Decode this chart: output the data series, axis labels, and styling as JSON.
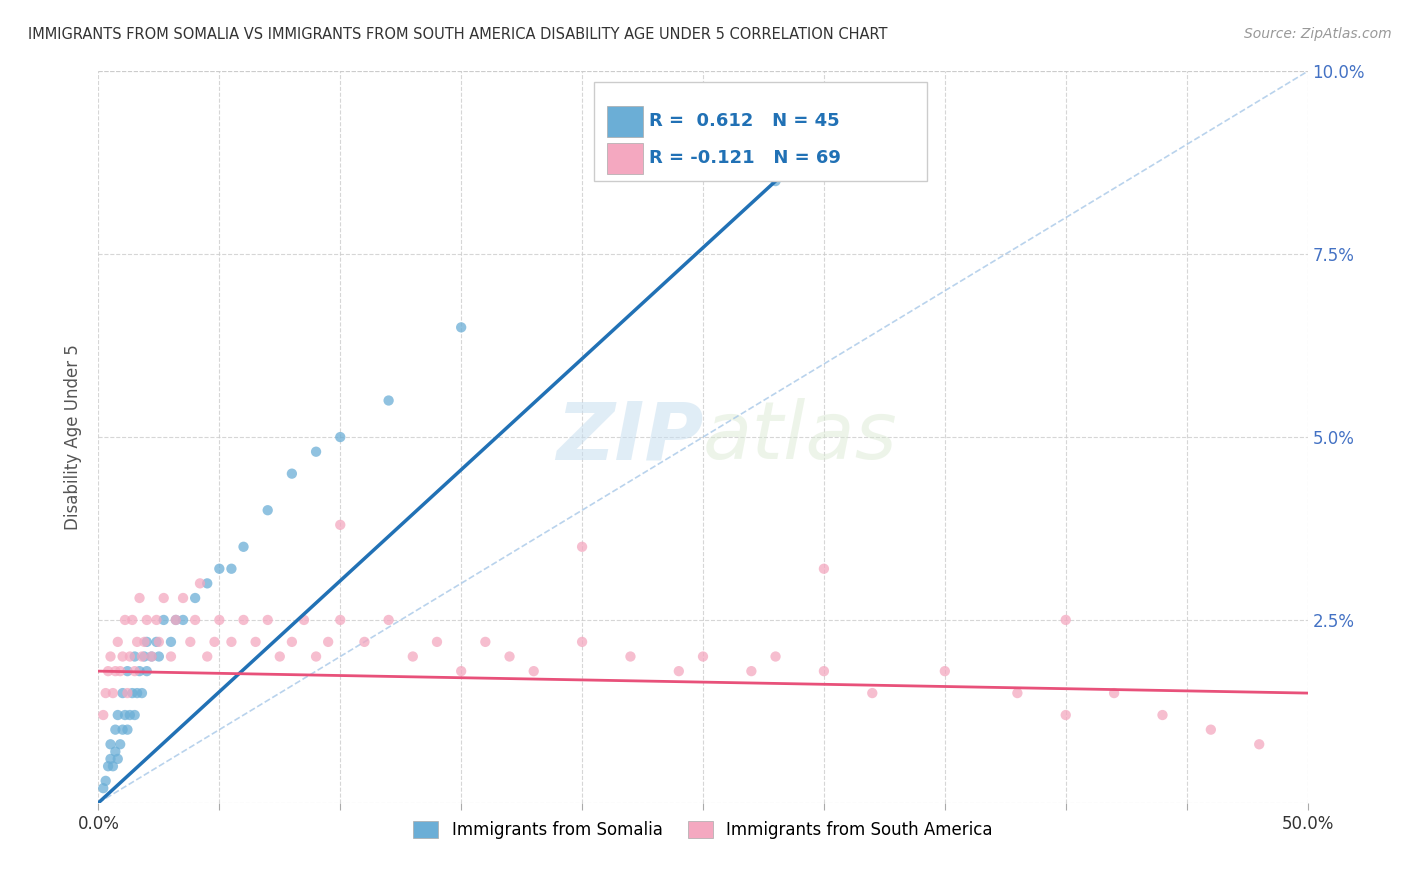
{
  "title": "IMMIGRANTS FROM SOMALIA VS IMMIGRANTS FROM SOUTH AMERICA DISABILITY AGE UNDER 5 CORRELATION CHART",
  "source": "Source: ZipAtlas.com",
  "ylabel": "Disability Age Under 5",
  "xlim": [
    0,
    0.5
  ],
  "ylim": [
    0,
    0.1
  ],
  "somalia_color": "#6baed6",
  "south_america_color": "#f4a8c0",
  "somalia_line_color": "#2171b5",
  "south_america_line_color": "#e8517a",
  "somalia_R": 0.612,
  "somalia_N": 45,
  "south_america_R": -0.121,
  "south_america_N": 69,
  "legend_somalia": "Immigrants from Somalia",
  "legend_south_america": "Immigrants from South America",
  "watermark_zip": "ZIP",
  "watermark_atlas": "atlas",
  "somalia_x": [
    0.002,
    0.003,
    0.004,
    0.005,
    0.005,
    0.006,
    0.007,
    0.007,
    0.008,
    0.008,
    0.009,
    0.01,
    0.01,
    0.011,
    0.012,
    0.012,
    0.013,
    0.014,
    0.015,
    0.015,
    0.016,
    0.017,
    0.018,
    0.019,
    0.02,
    0.02,
    0.022,
    0.024,
    0.025,
    0.027,
    0.03,
    0.032,
    0.035,
    0.04,
    0.045,
    0.05,
    0.055,
    0.06,
    0.07,
    0.08,
    0.09,
    0.1,
    0.12,
    0.15,
    0.28
  ],
  "somalia_y": [
    0.002,
    0.003,
    0.005,
    0.006,
    0.008,
    0.005,
    0.007,
    0.01,
    0.006,
    0.012,
    0.008,
    0.01,
    0.015,
    0.012,
    0.01,
    0.018,
    0.012,
    0.015,
    0.012,
    0.02,
    0.015,
    0.018,
    0.015,
    0.02,
    0.018,
    0.022,
    0.02,
    0.022,
    0.02,
    0.025,
    0.022,
    0.025,
    0.025,
    0.028,
    0.03,
    0.032,
    0.032,
    0.035,
    0.04,
    0.045,
    0.048,
    0.05,
    0.055,
    0.065,
    0.085
  ],
  "south_america_x": [
    0.002,
    0.003,
    0.004,
    0.005,
    0.006,
    0.007,
    0.008,
    0.009,
    0.01,
    0.011,
    0.012,
    0.013,
    0.014,
    0.015,
    0.016,
    0.017,
    0.018,
    0.019,
    0.02,
    0.022,
    0.024,
    0.025,
    0.027,
    0.03,
    0.032,
    0.035,
    0.038,
    0.04,
    0.042,
    0.045,
    0.048,
    0.05,
    0.055,
    0.06,
    0.065,
    0.07,
    0.075,
    0.08,
    0.085,
    0.09,
    0.095,
    0.1,
    0.11,
    0.12,
    0.13,
    0.14,
    0.15,
    0.16,
    0.17,
    0.18,
    0.2,
    0.22,
    0.24,
    0.25,
    0.27,
    0.28,
    0.3,
    0.32,
    0.35,
    0.38,
    0.4,
    0.42,
    0.44,
    0.46,
    0.48,
    0.1,
    0.2,
    0.3,
    0.4
  ],
  "south_america_y": [
    0.012,
    0.015,
    0.018,
    0.02,
    0.015,
    0.018,
    0.022,
    0.018,
    0.02,
    0.025,
    0.015,
    0.02,
    0.025,
    0.018,
    0.022,
    0.028,
    0.02,
    0.022,
    0.025,
    0.02,
    0.025,
    0.022,
    0.028,
    0.02,
    0.025,
    0.028,
    0.022,
    0.025,
    0.03,
    0.02,
    0.022,
    0.025,
    0.022,
    0.025,
    0.022,
    0.025,
    0.02,
    0.022,
    0.025,
    0.02,
    0.022,
    0.025,
    0.022,
    0.025,
    0.02,
    0.022,
    0.018,
    0.022,
    0.02,
    0.018,
    0.022,
    0.02,
    0.018,
    0.02,
    0.018,
    0.02,
    0.018,
    0.015,
    0.018,
    0.015,
    0.012,
    0.015,
    0.012,
    0.01,
    0.008,
    0.038,
    0.035,
    0.032,
    0.025
  ]
}
